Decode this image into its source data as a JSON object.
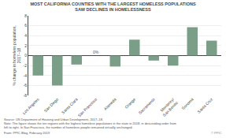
{
  "chart_data": {
    "type": "bar",
    "title": "MOST CALIFORNIA COUNTIES WITH THE LARGEST HOMELESS POPULATIONS\nSAW DECLINES IN HOMELESSNESS",
    "categories": [
      "Los Angeles",
      "San Diego",
      "Santa Clara",
      "San Francisco",
      "Alameda",
      "Orange",
      "Sacramento",
      "Monterey/\nSan Benito",
      "Sonoma",
      "Santa Cruz"
    ],
    "values": [
      -4.0,
      -6.0,
      -1.8,
      0.0,
      -2.2,
      3.2,
      -1.0,
      -2.0,
      5.7,
      3.0
    ],
    "color": "#7a9e87",
    "ylabel": "% change in homeless population,\n2017–18",
    "ylim": [
      -8,
      8
    ],
    "yticks": [
      -8,
      -6,
      -4,
      -2,
      0,
      2,
      4,
      6,
      8
    ],
    "grid": true,
    "annotations": [
      {
        "text": "0%",
        "category": "San Francisco"
      }
    ],
    "footnotes": {
      "source": "Source: US Department of Housing and Urban Development, 2017–18.",
      "note": "Note: The figure shows the ten regions with the highest homeless populations in the state in 2018, in descending order from\nleft to right. In San Francisco, the number of homeless people remained virtually unchanged.",
      "from": "From: PPIC Blog, February 2019",
      "copyright": "© PPIC"
    }
  }
}
